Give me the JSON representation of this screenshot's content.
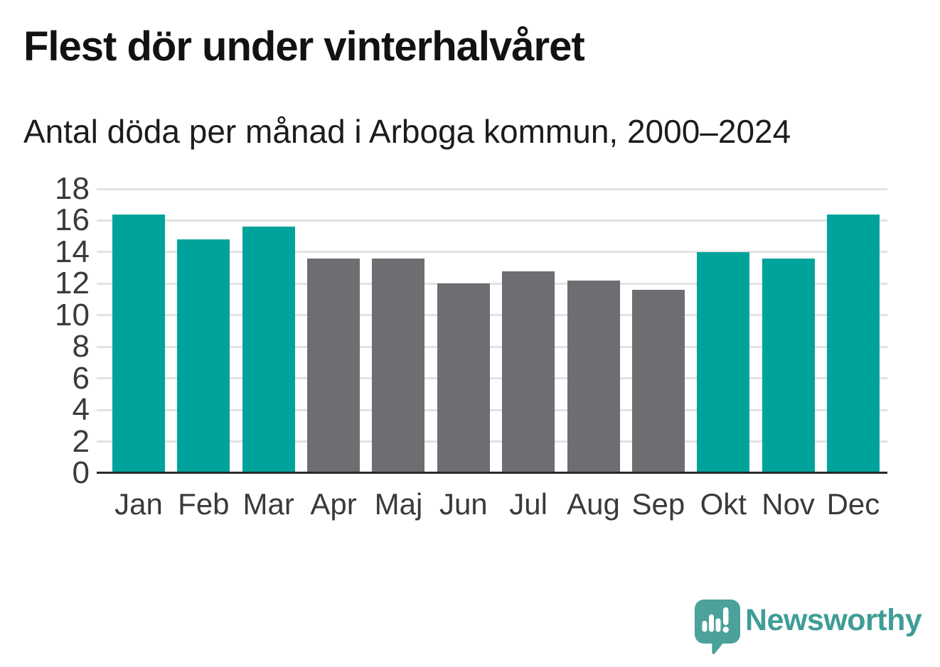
{
  "header": {
    "title": "Flest dör under vinterhalvåret",
    "subtitle": "Antal döda per månad i Arboga kommun, 2000–2024"
  },
  "chart_data": {
    "type": "bar",
    "title": "Flest dör under vinterhalvåret",
    "subtitle": "Antal döda per månad i Arboga kommun, 2000–2024",
    "categories": [
      "Jan",
      "Feb",
      "Mar",
      "Apr",
      "Maj",
      "Jun",
      "Jul",
      "Aug",
      "Sep",
      "Okt",
      "Nov",
      "Dec"
    ],
    "values": [
      16.4,
      14.8,
      15.6,
      13.6,
      13.6,
      12,
      12.8,
      12.2,
      11.6,
      14,
      13.6,
      16.4
    ],
    "highlighted": [
      true,
      true,
      true,
      false,
      false,
      false,
      false,
      false,
      false,
      true,
      true,
      true
    ],
    "colors": {
      "highlight": "#00a39b",
      "muted": "#6e6e72",
      "gridline": "#e2e2e2",
      "axis": "#2a2a2a",
      "tick_label": "#3a3a3a"
    },
    "ylim": [
      0,
      18
    ],
    "ytick_step": 2,
    "yticks": [
      0,
      2,
      4,
      6,
      8,
      10,
      12,
      14,
      16,
      18
    ],
    "grid": true,
    "legend": "none",
    "xlabel": "",
    "ylabel": ""
  },
  "footer": {
    "brand": "Newsworthy",
    "brand_color": "#3f9d96",
    "logo": {
      "icon_name": "newsworthy-speech-bubble-chart-icon",
      "bubble_color": "#4aa29b",
      "tail_color": "#3e918b",
      "glyph_color": "#ffffff"
    }
  }
}
